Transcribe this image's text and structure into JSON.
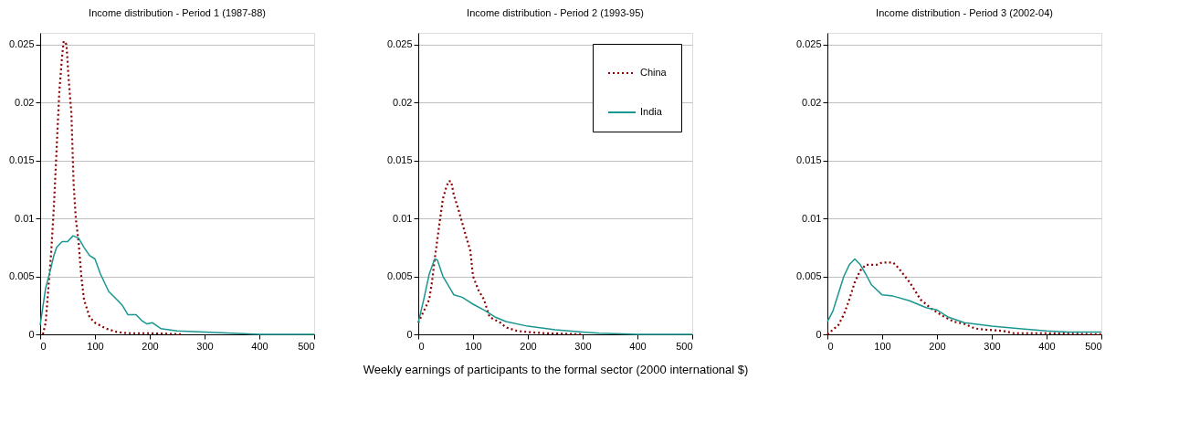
{
  "chart_data": [
    {
      "type": "line",
      "title": "Income distribution - Period 1 (1987-88)",
      "xlim": [
        0,
        500
      ],
      "xticks": [
        0,
        100,
        200,
        300,
        400,
        500
      ],
      "ylim": [
        0,
        0.026
      ],
      "yticks": [
        0,
        0.005,
        0.01,
        0.015,
        0.02,
        0.025
      ],
      "grid": "y",
      "legend": false,
      "series": [
        {
          "color": "#8b0000",
          "line_style": "dotted",
          "x": [
            5,
            10,
            15,
            20,
            25,
            30,
            35,
            40,
            43,
            48,
            52,
            57,
            61,
            65,
            70,
            75,
            80,
            90,
            100,
            120,
            140,
            160,
            200,
            260
          ],
          "values": [
            0,
            0.001,
            0.004,
            0.007,
            0.011,
            0.016,
            0.021,
            0.024,
            0.0253,
            0.025,
            0.022,
            0.019,
            0.013,
            0.01,
            0.008,
            0.005,
            0.003,
            0.0015,
            0.001,
            0.0005,
            0.0002,
            0.0001,
            0.0001,
            0
          ]
        },
        {
          "color": "#1a9690",
          "line_style": "solid",
          "x": [
            0,
            10,
            20,
            25,
            30,
            40,
            50,
            60,
            70,
            80,
            90,
            100,
            110,
            125,
            140,
            150,
            160,
            175,
            185,
            195,
            205,
            220,
            250,
            300,
            350,
            400,
            500
          ],
          "values": [
            0.0008,
            0.004,
            0.0058,
            0.0068,
            0.0075,
            0.008,
            0.008,
            0.0085,
            0.0083,
            0.0075,
            0.0068,
            0.0065,
            0.0052,
            0.0037,
            0.003,
            0.0025,
            0.0017,
            0.0017,
            0.0012,
            0.0009,
            0.001,
            0.0005,
            0.0003,
            0.0002,
            0.0001,
            0,
            0
          ]
        }
      ]
    },
    {
      "type": "line",
      "title": "Income distribution - Period 2 (1993-95)",
      "xlabel": "Weekly earnings of participants to the formal sector (2000 international $)",
      "xlim": [
        0,
        500
      ],
      "xticks": [
        0,
        100,
        200,
        300,
        400,
        500
      ],
      "ylim": [
        0,
        0.026
      ],
      "yticks": [
        0,
        0.005,
        0.01,
        0.015,
        0.02,
        0.025
      ],
      "grid": "y",
      "legend": "top right",
      "series": [
        {
          "name": "China",
          "color": "#8b0000",
          "line_style": "dotted",
          "x": [
            0,
            10,
            20,
            25,
            30,
            40,
            45,
            50,
            55,
            60,
            65,
            75,
            85,
            95,
            100,
            110,
            120,
            130,
            150,
            160,
            180,
            200,
            230,
            300
          ],
          "values": [
            0.001,
            0.002,
            0.003,
            0.0045,
            0.0065,
            0.01,
            0.0117,
            0.0125,
            0.0132,
            0.0132,
            0.012,
            0.0105,
            0.0088,
            0.0072,
            0.005,
            0.0038,
            0.003,
            0.0015,
            0.001,
            0.0006,
            0.0003,
            0.0002,
            0.0001,
            0
          ]
        },
        {
          "name": "India",
          "color": "#1a9690",
          "line_style": "solid",
          "x": [
            0,
            10,
            20,
            30,
            35,
            45,
            55,
            65,
            80,
            100,
            120,
            140,
            160,
            200,
            250,
            300,
            330,
            400,
            500
          ],
          "values": [
            0.001,
            0.003,
            0.0052,
            0.0065,
            0.0064,
            0.005,
            0.0042,
            0.0034,
            0.0032,
            0.0026,
            0.0021,
            0.0015,
            0.0011,
            0.0007,
            0.0004,
            0.0002,
            0.0001,
            0,
            0
          ]
        }
      ]
    },
    {
      "type": "line",
      "title": "Income distribution - Period 3 (2002-04)",
      "xlim": [
        0,
        500
      ],
      "xticks": [
        0,
        100,
        200,
        300,
        400,
        500
      ],
      "ylim": [
        0,
        0.026
      ],
      "yticks": [
        0,
        0.005,
        0.01,
        0.015,
        0.02,
        0.025
      ],
      "grid": "y",
      "legend": false,
      "series": [
        {
          "color": "#8b0000",
          "line_style": "dotted",
          "x": [
            0,
            20,
            30,
            40,
            50,
            60,
            70,
            90,
            100,
            120,
            130,
            150,
            170,
            190,
            210,
            230,
            250,
            270,
            290,
            320,
            340,
            400,
            500
          ],
          "values": [
            0,
            0.0008,
            0.0017,
            0.003,
            0.0045,
            0.0055,
            0.006,
            0.006,
            0.0062,
            0.0062,
            0.0057,
            0.0045,
            0.003,
            0.0022,
            0.0016,
            0.0011,
            0.0009,
            0.0005,
            0.0004,
            0.0003,
            0.0001,
            0.0001,
            0
          ]
        },
        {
          "color": "#1a9690",
          "line_style": "solid",
          "x": [
            0,
            10,
            20,
            30,
            40,
            50,
            60,
            70,
            80,
            100,
            120,
            150,
            180,
            200,
            220,
            250,
            300,
            350,
            400,
            440,
            500
          ],
          "values": [
            0.0011,
            0.002,
            0.0035,
            0.005,
            0.006,
            0.0065,
            0.006,
            0.0052,
            0.0043,
            0.0034,
            0.0033,
            0.0029,
            0.0023,
            0.0021,
            0.0015,
            0.001,
            0.0007,
            0.0005,
            0.0003,
            0.0002,
            0.0002
          ]
        }
      ]
    }
  ]
}
